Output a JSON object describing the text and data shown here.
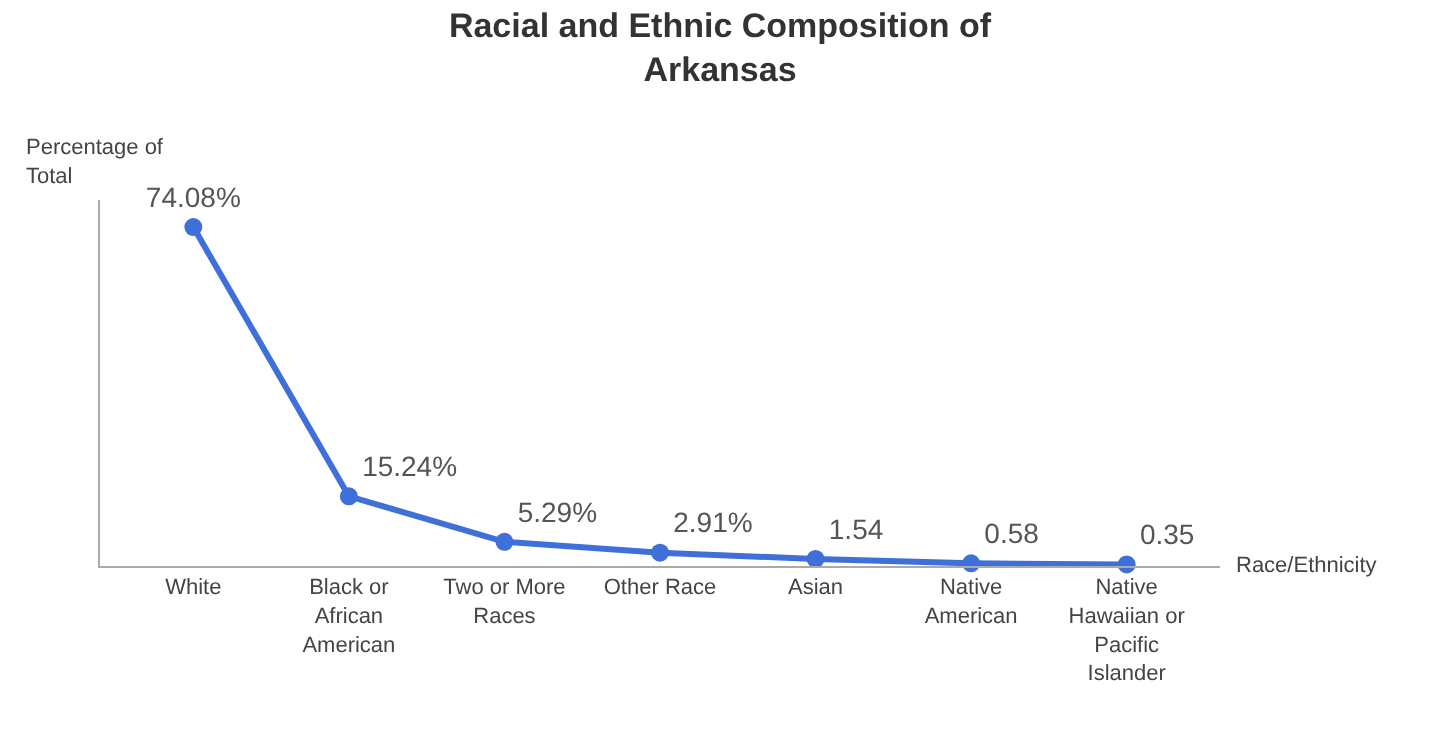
{
  "chart_data": {
    "type": "line",
    "title": "Racial and Ethnic Composition of Arkansas",
    "xlabel": "Race/Ethnicity",
    "ylabel": "Percentage of Total",
    "categories": [
      "White",
      "Black or African American",
      "Two or More Races",
      "Other Race",
      "Asian",
      "Native American",
      "Native Hawaiian or Pacific Islander"
    ],
    "series": [
      {
        "color": "#3f6fd8",
        "values": [
          74.08,
          15.24,
          5.29,
          2.91,
          1.54,
          0.58,
          0.35
        ],
        "value_labels": [
          "74.08%",
          "15.24%",
          "5.29%",
          "2.91%",
          "1.54",
          "0.58",
          "0.35"
        ]
      }
    ],
    "marker": "circle",
    "line_style": "solid",
    "legend": false
  }
}
